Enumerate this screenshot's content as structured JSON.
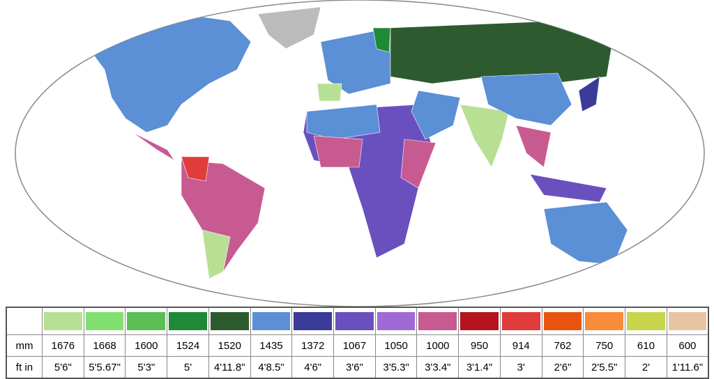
{
  "legend": {
    "row_labels": [
      "mm",
      "ft in"
    ],
    "gauges": [
      {
        "color": "#b8e094",
        "mm": "1676",
        "ft_in": "5'6\""
      },
      {
        "color": "#82e070",
        "mm": "1668",
        "ft_in": "5'5.67\""
      },
      {
        "color": "#5cbf55",
        "mm": "1600",
        "ft_in": "5'3\""
      },
      {
        "color": "#1f8a35",
        "mm": "1524",
        "ft_in": "5'"
      },
      {
        "color": "#2e5a2f",
        "mm": "1520",
        "ft_in": "4'11.8\""
      },
      {
        "color": "#5b8fd6",
        "mm": "1435",
        "ft_in": "4'8.5\""
      },
      {
        "color": "#3b3b9a",
        "mm": "1372",
        "ft_in": "4'6\""
      },
      {
        "color": "#6a50bf",
        "mm": "1067",
        "ft_in": "3'6\""
      },
      {
        "color": "#a06ad6",
        "mm": "1050",
        "ft_in": "3'5.3\""
      },
      {
        "color": "#c85a92",
        "mm": "1000",
        "ft_in": "3'3.4\""
      },
      {
        "color": "#b3141e",
        "mm": "950",
        "ft_in": "3'1.4\""
      },
      {
        "color": "#e03c3c",
        "mm": "914",
        "ft_in": "3'"
      },
      {
        "color": "#e85510",
        "mm": "762",
        "ft_in": "2'6\""
      },
      {
        "color": "#f88c3a",
        "mm": "750",
        "ft_in": "2'5.5\""
      },
      {
        "color": "#c8d44a",
        "mm": "610",
        "ft_in": "2'"
      },
      {
        "color": "#e8c4a0",
        "mm": "600",
        "ft_in": "1'11.6\""
      }
    ]
  }
}
